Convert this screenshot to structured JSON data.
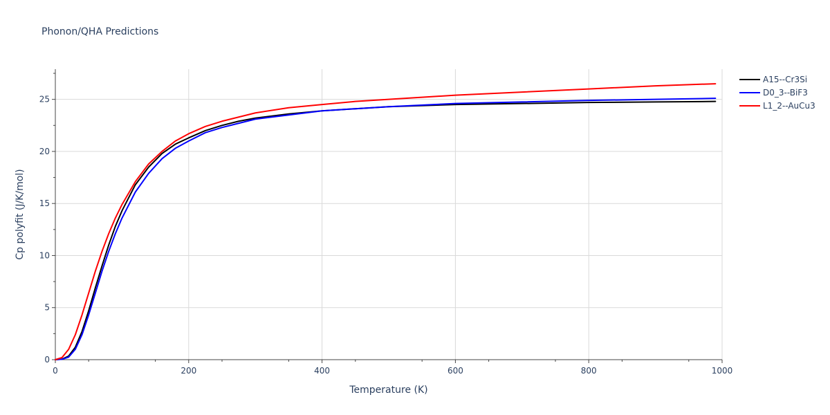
{
  "chart_data": {
    "type": "line",
    "title": "Phonon/QHA Predictions",
    "xlabel": "Temperature (K)",
    "ylabel": "Cp polyfit (J/K/mol)",
    "xlim": [
      0,
      1000
    ],
    "ylim": [
      0,
      27.9
    ],
    "x_ticks": [
      0,
      200,
      400,
      600,
      800,
      1000
    ],
    "y_ticks": [
      0,
      5,
      10,
      15,
      20,
      25
    ],
    "grid": true,
    "legend_position": "top-right",
    "series": [
      {
        "name": "A15--Cr3Si",
        "color": "#000000",
        "x": [
          0,
          10,
          20,
          30,
          40,
          50,
          60,
          70,
          80,
          90,
          100,
          120,
          140,
          160,
          180,
          200,
          225,
          250,
          275,
          300,
          350,
          400,
          450,
          500,
          600,
          700,
          800,
          900,
          990
        ],
        "y": [
          0,
          0.05,
          0.35,
          1.2,
          2.7,
          4.7,
          6.9,
          9.0,
          11.0,
          12.8,
          14.3,
          16.8,
          18.5,
          19.8,
          20.7,
          21.3,
          22.0,
          22.5,
          22.9,
          23.2,
          23.6,
          23.9,
          24.1,
          24.3,
          24.5,
          24.6,
          24.7,
          24.75,
          24.8
        ]
      },
      {
        "name": "D0_3--BiF3",
        "color": "#0000ff",
        "x": [
          0,
          10,
          20,
          30,
          40,
          50,
          60,
          70,
          80,
          90,
          100,
          120,
          140,
          160,
          180,
          200,
          225,
          250,
          275,
          300,
          350,
          400,
          450,
          500,
          600,
          700,
          800,
          900,
          990
        ],
        "y": [
          0,
          0.04,
          0.25,
          1.0,
          2.4,
          4.3,
          6.4,
          8.5,
          10.4,
          12.1,
          13.6,
          16.1,
          17.9,
          19.3,
          20.3,
          21.0,
          21.8,
          22.3,
          22.7,
          23.1,
          23.5,
          23.9,
          24.1,
          24.3,
          24.6,
          24.75,
          24.9,
          25.0,
          25.1
        ]
      },
      {
        "name": "L1_2--AuCu3",
        "color": "#ff0000",
        "x": [
          0,
          10,
          20,
          30,
          40,
          50,
          60,
          70,
          80,
          90,
          100,
          120,
          140,
          160,
          180,
          200,
          225,
          250,
          275,
          300,
          350,
          400,
          450,
          500,
          600,
          700,
          800,
          900,
          990
        ],
        "y": [
          0,
          0.2,
          1.0,
          2.4,
          4.3,
          6.4,
          8.5,
          10.4,
          12.1,
          13.6,
          14.9,
          17.1,
          18.8,
          20.0,
          21.0,
          21.7,
          22.4,
          22.9,
          23.3,
          23.7,
          24.2,
          24.5,
          24.8,
          25.0,
          25.4,
          25.7,
          26.0,
          26.3,
          26.5
        ]
      }
    ]
  }
}
